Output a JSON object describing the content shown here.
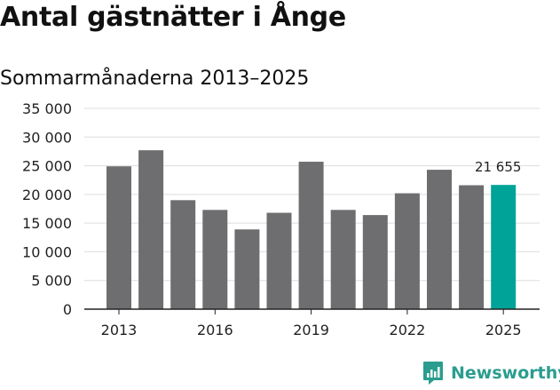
{
  "title": "Antal gästnätter i Ånge",
  "subtitle": "Sommarmånaderna 2013–2025",
  "brand": "Newsworthy",
  "colors": {
    "bar": "#6e6d70",
    "highlight": "#00a398",
    "grid": "#dddddd",
    "brand": "#2a9d8f"
  },
  "chart_data": {
    "type": "bar",
    "categories": [
      "2013",
      "2014",
      "2015",
      "2016",
      "2017",
      "2018",
      "2019",
      "2020",
      "2021",
      "2022",
      "2023",
      "2024",
      "2025"
    ],
    "values": [
      24900,
      27700,
      19000,
      17300,
      13900,
      16800,
      25700,
      17300,
      16400,
      20200,
      24300,
      21600,
      21655
    ],
    "highlight_index": 12,
    "data_label": "21 655",
    "ylim": [
      0,
      35000
    ],
    "yticks": [
      0,
      5000,
      10000,
      15000,
      20000,
      25000,
      30000,
      35000
    ],
    "ytick_labels": [
      "0",
      "5 000",
      "10 000",
      "15 000",
      "20 000",
      "25 000",
      "30 000",
      "35 000"
    ],
    "xtick_labels": [
      "2013",
      "2016",
      "2019",
      "2022",
      "2025"
    ],
    "grid": true
  }
}
